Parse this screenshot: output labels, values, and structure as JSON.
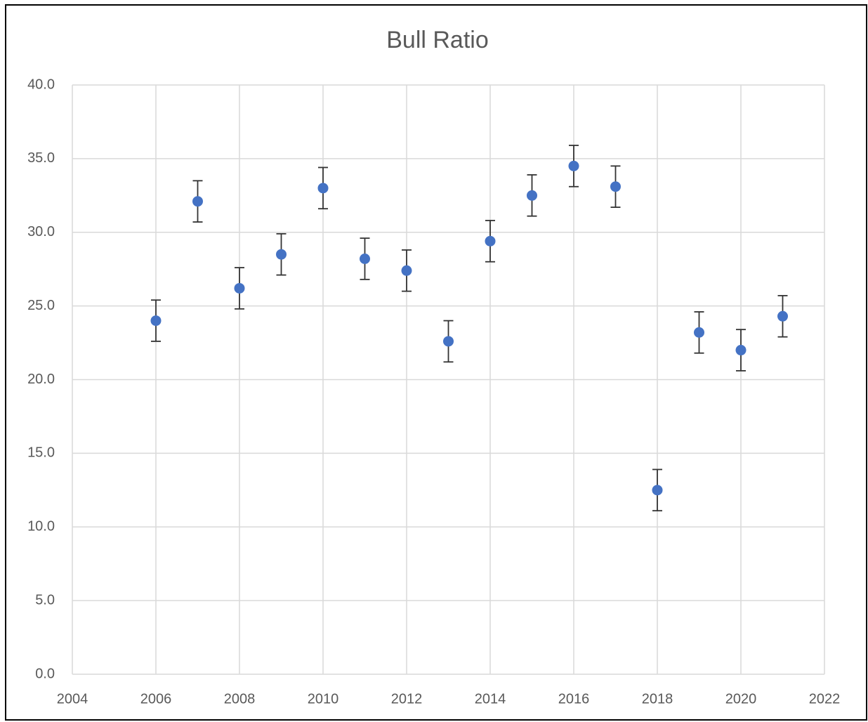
{
  "chart_data": {
    "type": "scatter",
    "title": "Bull Ratio",
    "x": [
      2006,
      2007,
      2008,
      2009,
      2010,
      2011,
      2012,
      2013,
      2014,
      2015,
      2016,
      2017,
      2018,
      2019,
      2020,
      2021
    ],
    "series": [
      {
        "color": "#4472c4",
        "values": [
          24.0,
          32.1,
          26.2,
          28.5,
          33.0,
          28.2,
          27.4,
          22.6,
          29.4,
          32.5,
          34.5,
          33.1,
          12.5,
          23.2,
          22.0,
          24.3
        ],
        "errors": [
          1.4,
          1.4,
          1.4,
          1.4,
          1.4,
          1.4,
          1.4,
          1.4,
          1.4,
          1.4,
          1.4,
          1.4,
          1.4,
          1.4,
          1.4,
          1.4
        ]
      }
    ],
    "xlim": [
      2004,
      2022
    ],
    "xticks": [
      2004,
      2006,
      2008,
      2010,
      2012,
      2014,
      2016,
      2018,
      2020,
      2022
    ],
    "ylim": [
      0,
      40
    ],
    "yticks": [
      {
        "value": 0,
        "label": "0.0"
      },
      {
        "value": 5,
        "label": "5.0"
      },
      {
        "value": 10,
        "label": "10.0"
      },
      {
        "value": 15,
        "label": "15.0"
      },
      {
        "value": 20,
        "label": "20.0"
      },
      {
        "value": 25,
        "label": "25.0"
      },
      {
        "value": 30,
        "label": "30.0"
      },
      {
        "value": 35,
        "label": "35.0"
      },
      {
        "value": 40,
        "label": "40.0"
      }
    ],
    "grid": true
  }
}
